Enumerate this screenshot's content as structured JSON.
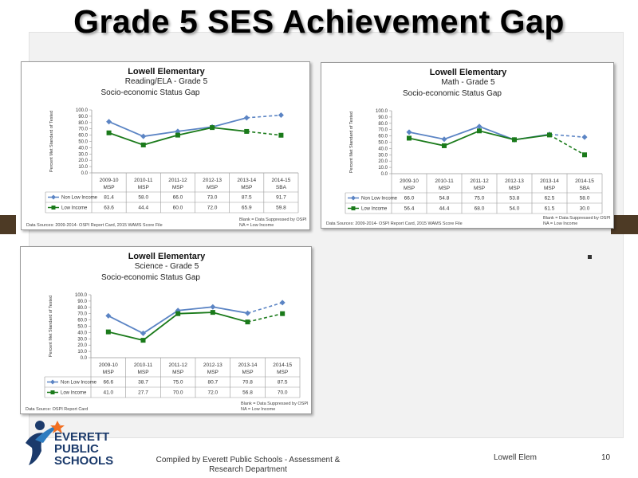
{
  "slide": {
    "title": "Grade 5 SES Achievement Gap",
    "footer_compiled": "Compiled  by Everett Public Schools - Assessment & Research Department",
    "footer_school": "Lowell Elem",
    "page_number": "10",
    "logo": {
      "line1": "EVERETT",
      "line2": "PUBLIC",
      "line3": "SCHOOLS",
      "colors": {
        "navy": "#1b3a6b",
        "orange": "#f26f21",
        "blue": "#2e7cc0"
      }
    }
  },
  "colors": {
    "non_low_income": "#5b84c4",
    "low_income": "#1a7a1a"
  },
  "chart_data": [
    {
      "id": "reading",
      "type": "line",
      "title": "Lowell Elementary",
      "subtitle": "Reading/ELA - Grade 5",
      "chart_title": "Socio-economic Status Gap",
      "ylabel": "Percent Met Standard of Tested",
      "ylim": [
        0,
        100
      ],
      "yticks": [
        "100.0",
        "90.0",
        "80.0",
        "70.0",
        "60.0",
        "50.0",
        "40.0",
        "30.0",
        "20.0",
        "10.0",
        "0.0"
      ],
      "categories": [
        {
          "year": "2009-10",
          "test": "MSP"
        },
        {
          "year": "2010-11",
          "test": "MSP"
        },
        {
          "year": "2011-12",
          "test": "MSP"
        },
        {
          "year": "2012-13",
          "test": "MSP"
        },
        {
          "year": "2013-14",
          "test": "MSP"
        },
        {
          "year": "2014-15",
          "test": "SBA"
        }
      ],
      "series": [
        {
          "name": "Non Low Income",
          "values": [
            81.4,
            58.0,
            66.0,
            73.0,
            87.5,
            91.7
          ],
          "labels": [
            "81.4",
            "58.0",
            "66.0",
            "73.0",
            "87.5",
            "91.7"
          ]
        },
        {
          "name": "Low Income",
          "values": [
            63.6,
            44.4,
            60.0,
            72.0,
            65.9,
            59.8
          ],
          "labels": [
            "63.6",
            "44.4",
            "60.0",
            "72.0",
            "65.9",
            "59.8"
          ]
        }
      ],
      "data_source": "Data Sources: 2009-2014- OSPI Report Card, 2015 WAMS Score File",
      "note_line1": "Blank = Data Suppressed by OSPI",
      "note_line2": "NA = Low Income"
    },
    {
      "id": "math",
      "type": "line",
      "title": "Lowell Elementary",
      "subtitle": "Math - Grade 5",
      "chart_title": "Socio-economic Status Gap",
      "ylabel": "Percent Met Standard of Tested",
      "ylim": [
        0,
        100
      ],
      "yticks": [
        "100.0",
        "90.0",
        "80.0",
        "70.0",
        "60.0",
        "50.0",
        "40.0",
        "30.0",
        "20.0",
        "10.0",
        "0.0"
      ],
      "categories": [
        {
          "year": "2009-10",
          "test": "MSP"
        },
        {
          "year": "2010-11",
          "test": "MSP"
        },
        {
          "year": "2011-12",
          "test": "MSP"
        },
        {
          "year": "2012-13",
          "test": "MSP"
        },
        {
          "year": "2013-14",
          "test": "MSP"
        },
        {
          "year": "2014-15",
          "test": "SBA"
        }
      ],
      "series": [
        {
          "name": "Non Low Income",
          "values": [
            66.0,
            54.8,
            75.0,
            53.8,
            62.5,
            58.0
          ],
          "labels": [
            "66.0",
            "54.8",
            "75.0",
            "53.8",
            "62.5",
            "58.0"
          ]
        },
        {
          "name": "Low Income",
          "values": [
            56.4,
            44.4,
            68.0,
            54.0,
            61.5,
            30.0
          ],
          "labels": [
            "56.4",
            "44.4",
            "68.0",
            "54.0",
            "61.5",
            "30.0"
          ]
        }
      ],
      "data_source": "Data Sources: 2009-2014- OSPI Report Card, 2015 WAMS Score File",
      "note_line1": "Blank = Data Suppressed by OSPI",
      "note_line2": "NA = Low Income"
    },
    {
      "id": "science",
      "type": "line",
      "title": "Lowell Elementary",
      "subtitle": "Science - Grade 5",
      "chart_title": "Socio-economic Status Gap",
      "ylabel": "Percent Met Standard of Tested",
      "ylim": [
        0,
        100
      ],
      "yticks": [
        "100.0",
        "90.0",
        "80.0",
        "70.0",
        "60.0",
        "50.0",
        "40.0",
        "30.0",
        "20.0",
        "10.0",
        "0.0"
      ],
      "categories": [
        {
          "year": "2009-10",
          "test": "MSP"
        },
        {
          "year": "2010-11",
          "test": "MSP"
        },
        {
          "year": "2011-12",
          "test": "MSP"
        },
        {
          "year": "2012-13",
          "test": "MSP"
        },
        {
          "year": "2013-14",
          "test": "MSP"
        },
        {
          "year": "2014-15",
          "test": "MSP"
        }
      ],
      "series": [
        {
          "name": "Non Low Income",
          "values": [
            66.6,
            38.7,
            75.0,
            80.7,
            70.8,
            87.5
          ],
          "labels": [
            "66.6",
            "38.7",
            "75.0",
            "80.7",
            "70.8",
            "87.5"
          ]
        },
        {
          "name": "Low Income",
          "values": [
            41.0,
            27.7,
            70.0,
            72.0,
            56.8,
            70.0
          ],
          "labels": [
            "41.0",
            "27.7",
            "70.0",
            "72.0",
            "56.8",
            "70.0"
          ]
        }
      ],
      "data_source": "Data Source: OSPI Report Card",
      "note_line1": "Blank = Data Suppressed by OSPI",
      "note_line2": "NA = Low Income"
    }
  ]
}
